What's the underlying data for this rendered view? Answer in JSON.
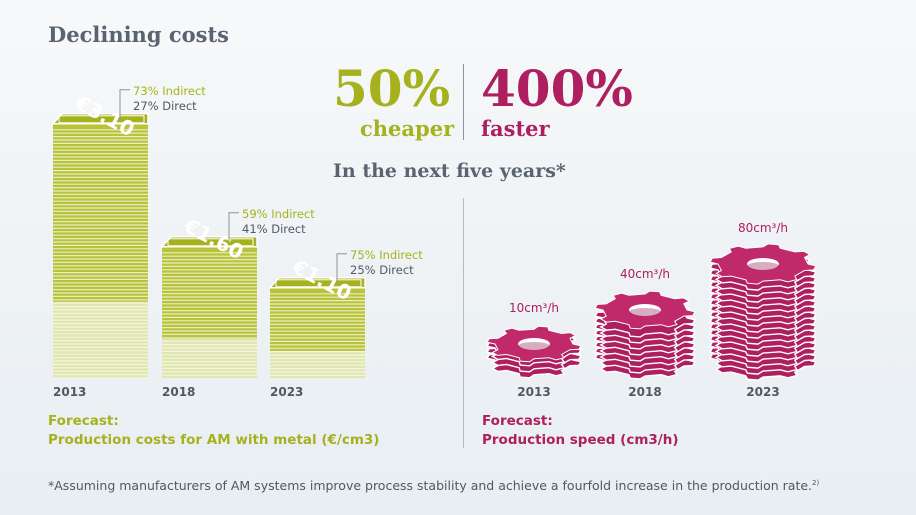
{
  "title": "Declining costs",
  "headline": {
    "cost_value": "50%",
    "cost_word": "cheaper",
    "speed_value": "400%",
    "speed_word": "faster",
    "subtitle": "In the next five years*",
    "cost_color": "#a5b21d",
    "speed_color": "#ad1f5e"
  },
  "chart_data": [
    {
      "type": "bar",
      "categories": [
        "2013",
        "2018",
        "2023"
      ],
      "values": [
        3.1,
        1.6,
        1.1
      ],
      "value_labels": [
        "€3.10",
        "€1.60",
        "€1.10"
      ],
      "breakdown": [
        {
          "indirect": "73% Indirect",
          "direct": "27% Direct",
          "indirect_pct": 73
        },
        {
          "indirect": "59% Indirect",
          "direct": "41% Direct",
          "indirect_pct": 59
        },
        {
          "indirect": "75% Indirect",
          "direct": "25% Direct",
          "indirect_pct": 75
        }
      ],
      "caption_line1": "Forecast:",
      "caption_line2": "Production costs for AM with metal (€/cm3)",
      "color": "#a5b21d"
    },
    {
      "type": "bar",
      "categories": [
        "2013",
        "2018",
        "2023"
      ],
      "values": [
        10,
        40,
        80
      ],
      "value_labels": [
        "10cm³/h",
        "40cm³/h",
        "80cm³/h"
      ],
      "caption_line1": "Forecast:",
      "caption_line2": "Production speed (cm3/h)",
      "color": "#ad1f5e"
    }
  ],
  "footnote": "*Assuming manufacturers of AM systems improve process stability and achieve a fourfold increase in the production rate.",
  "footnote_ref": "2)"
}
